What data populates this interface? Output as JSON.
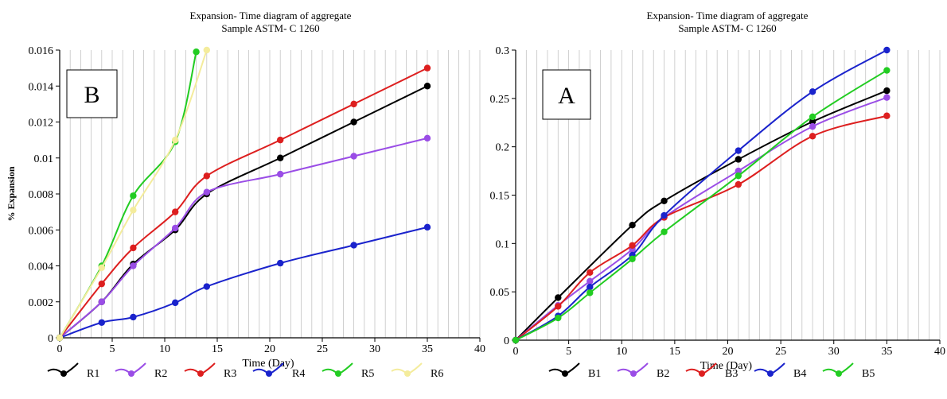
{
  "chart_data": [
    {
      "id": "left",
      "type": "line",
      "title_line1": "Expansion- Time diagram of aggregate",
      "title_line2": "Sample ASTM- C 1260",
      "panel_label": "B",
      "xlabel": "Time (Day)",
      "ylabel": "% Expansion",
      "xlim": [
        0,
        40
      ],
      "ylim": [
        0,
        0.016
      ],
      "xticks": [
        0,
        5,
        10,
        15,
        20,
        25,
        30,
        35,
        40
      ],
      "xtick_labels": [
        "0",
        "5",
        "10",
        "15",
        "20",
        "25",
        "30",
        "35",
        "40"
      ],
      "yticks": [
        0,
        0.002,
        0.004,
        0.006,
        0.008,
        0.01,
        0.012,
        0.014,
        0.016
      ],
      "ytick_labels": [
        "0",
        "0.002",
        "0.004",
        "0.006",
        "0.008",
        "0.01",
        "0.012",
        "0.014",
        "0.016"
      ],
      "grid": true,
      "legend_position": "bottom",
      "series": [
        {
          "name": "R1",
          "color": "#000000",
          "x": [
            0,
            4,
            7,
            11,
            14,
            21,
            28,
            35
          ],
          "y": [
            0,
            0.002,
            0.0041,
            0.006,
            0.008,
            0.01,
            0.012,
            0.014
          ]
        },
        {
          "name": "R2",
          "color": "#9a4de6",
          "x": [
            0,
            4,
            7,
            11,
            14,
            21,
            28,
            35
          ],
          "y": [
            0,
            0.002,
            0.004,
            0.0061,
            0.0081,
            0.0091,
            0.0101,
            0.0111
          ]
        },
        {
          "name": "R3",
          "color": "#dd1f1f",
          "x": [
            0,
            4,
            7,
            11,
            14,
            21,
            28,
            35
          ],
          "y": [
            0,
            0.003,
            0.005,
            0.007,
            0.009,
            0.011,
            0.013,
            0.015
          ]
        },
        {
          "name": "R4",
          "color": "#1a23cc",
          "x": [
            0,
            4,
            7,
            11,
            14,
            21,
            28,
            35
          ],
          "y": [
            0,
            0.00085,
            0.00115,
            0.00195,
            0.00285,
            0.00415,
            0.00515,
            0.00615
          ]
        },
        {
          "name": "R5",
          "color": "#22cc22",
          "x": [
            0,
            4,
            7,
            11,
            13
          ],
          "y": [
            0,
            0.004,
            0.0079,
            0.0109,
            0.0159
          ]
        },
        {
          "name": "R6",
          "color": "#f4ec9c",
          "x": [
            0,
            4,
            7,
            11,
            14
          ],
          "y": [
            0,
            0.0039,
            0.0071,
            0.011,
            0.016
          ]
        }
      ]
    },
    {
      "id": "right",
      "type": "line",
      "title_line1": "Expansion- Time diagram of aggregate",
      "title_line2": "Sample ASTM- C 1260",
      "panel_label": "A",
      "xlabel": "Time (Day)",
      "ylabel": "",
      "xlim": [
        0,
        40
      ],
      "ylim": [
        0,
        0.3
      ],
      "xticks": [
        0,
        5,
        10,
        15,
        20,
        25,
        30,
        35,
        40
      ],
      "xtick_labels": [
        "0",
        "5",
        "10",
        "15",
        "20",
        "25",
        "30",
        "35",
        "40"
      ],
      "yticks": [
        0,
        0.05,
        0.1,
        0.15,
        0.2,
        0.25,
        0.3
      ],
      "ytick_labels": [
        "0",
        "0.05",
        "0.1",
        "0.15",
        "0.2",
        "0.25",
        "0.3"
      ],
      "grid": true,
      "legend_position": "bottom",
      "series": [
        {
          "name": "B1",
          "color": "#000000",
          "x": [
            0,
            4,
            11,
            14,
            21,
            28,
            35
          ],
          "y": [
            0,
            0.044,
            0.119,
            0.144,
            0.187,
            0.226,
            0.258
          ]
        },
        {
          "name": "B2",
          "color": "#9a4de6",
          "x": [
            0,
            4,
            7,
            11,
            14,
            21,
            28,
            35
          ],
          "y": [
            0,
            0.036,
            0.061,
            0.094,
            0.127,
            0.175,
            0.221,
            0.251
          ]
        },
        {
          "name": "B3",
          "color": "#dd1f1f",
          "x": [
            0,
            4,
            7,
            11,
            14,
            21,
            28,
            35
          ],
          "y": [
            0,
            0.035,
            0.07,
            0.098,
            0.127,
            0.161,
            0.211,
            0.232
          ]
        },
        {
          "name": "B4",
          "color": "#1a23cc",
          "x": [
            0,
            4,
            7,
            11,
            14,
            21,
            28,
            35
          ],
          "y": [
            0,
            0.025,
            0.055,
            0.088,
            0.129,
            0.196,
            0.257,
            0.3
          ]
        },
        {
          "name": "B5",
          "color": "#22cc22",
          "x": [
            0,
            4,
            7,
            11,
            14,
            21,
            28,
            35
          ],
          "y": [
            0,
            0.023,
            0.049,
            0.084,
            0.112,
            0.17,
            0.231,
            0.279
          ]
        }
      ]
    }
  ]
}
